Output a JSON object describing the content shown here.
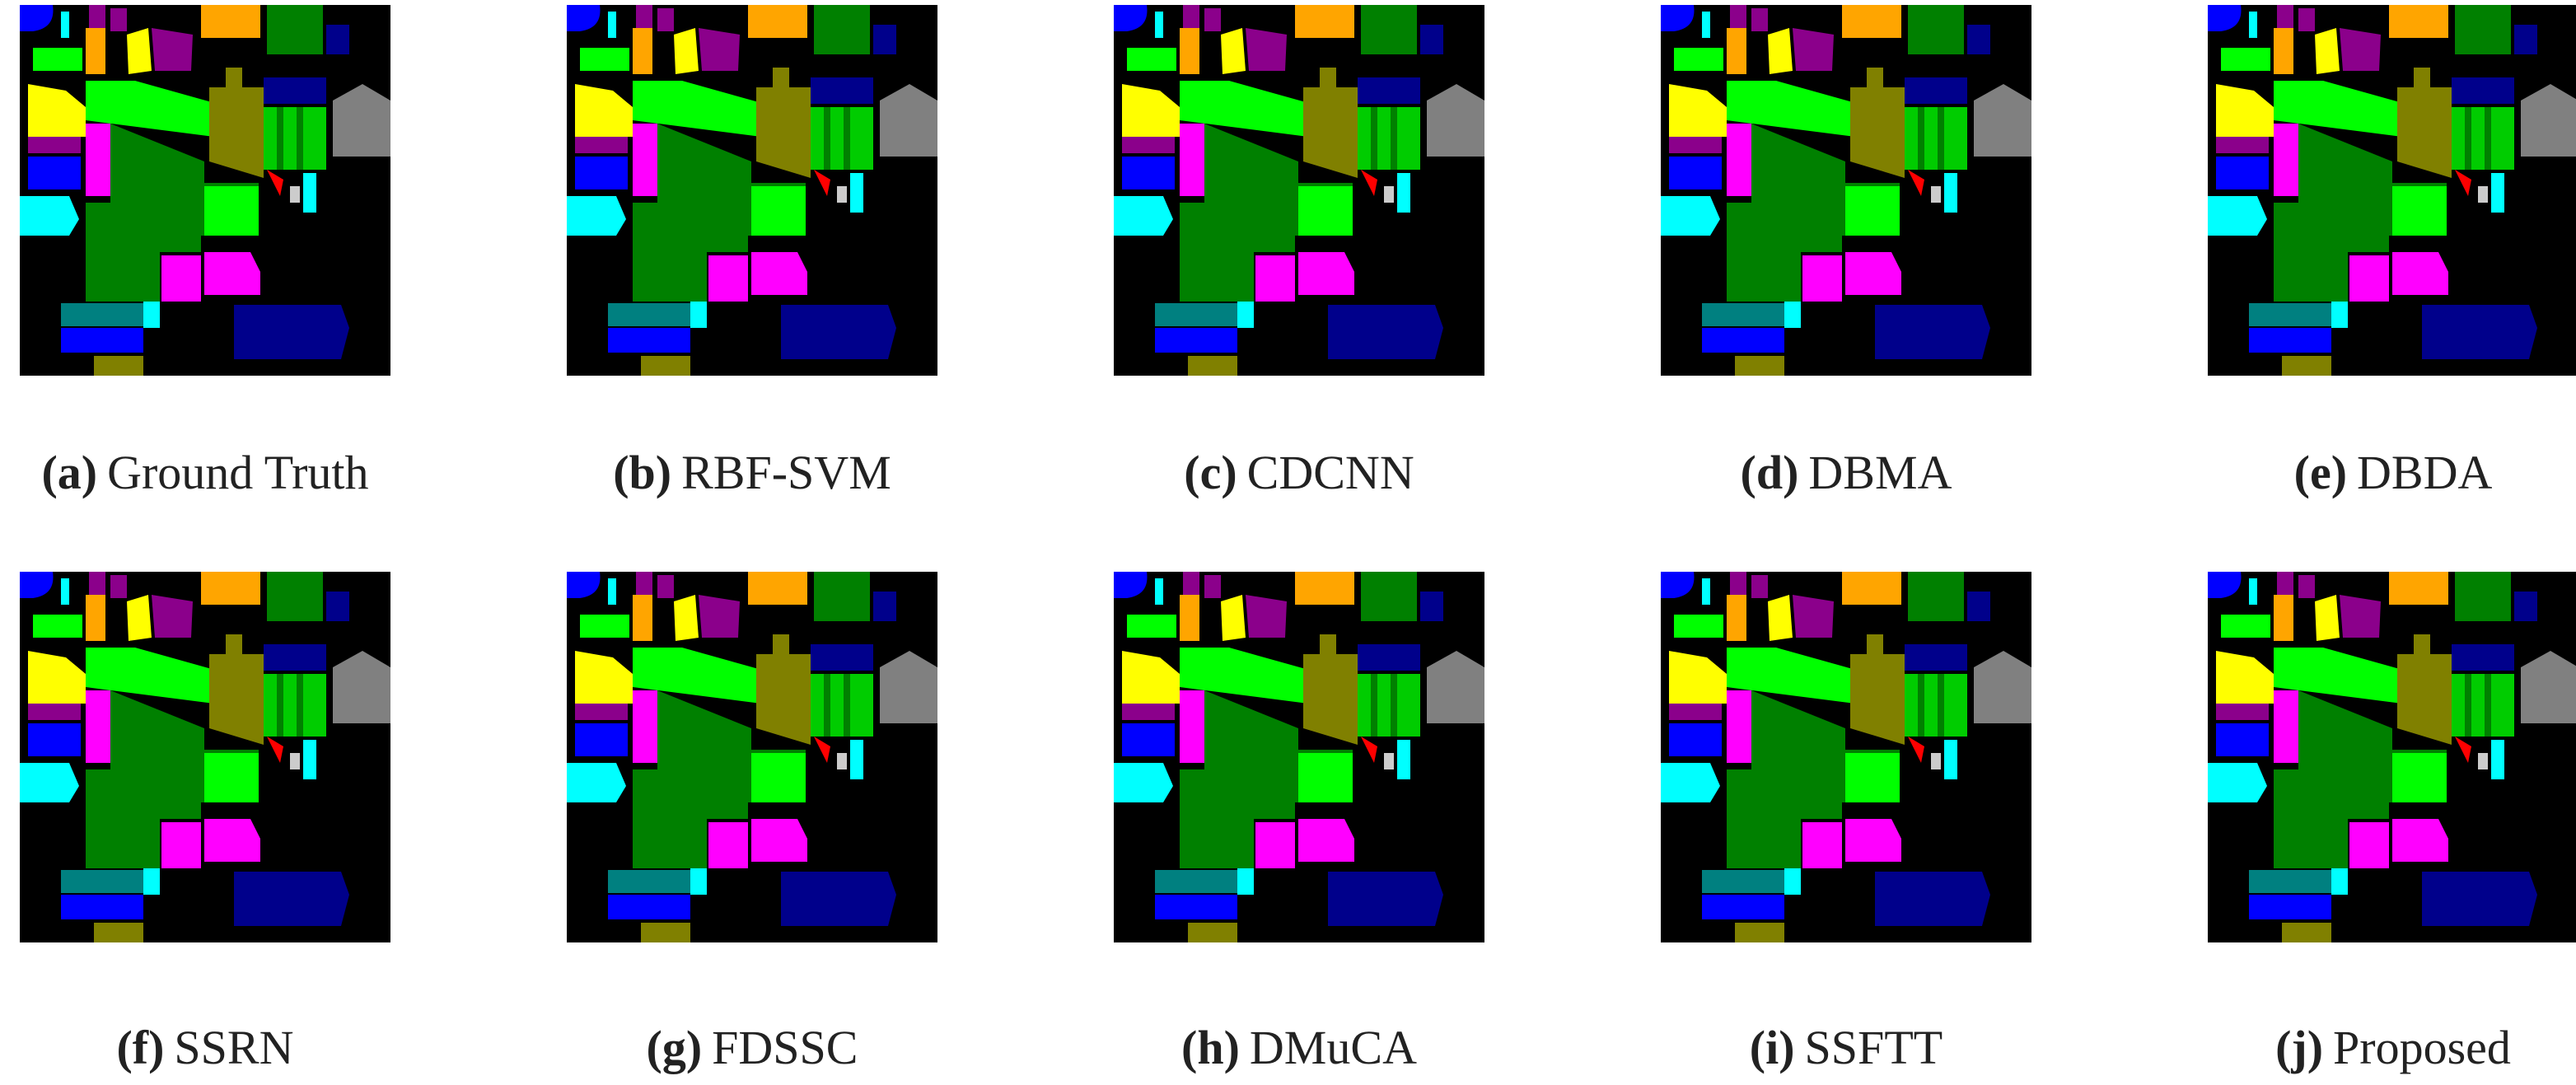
{
  "panels": [
    {
      "label": "(a)",
      "text": "Ground Truth"
    },
    {
      "label": "(b)",
      "text": "RBF-SVM"
    },
    {
      "label": "(c)",
      "text": "CDCNN"
    },
    {
      "label": "(d)",
      "text": "DBMA"
    },
    {
      "label": "(e)",
      "text": "DBDA"
    },
    {
      "label": "(f)",
      "text": "SSRN"
    },
    {
      "label": "(g)",
      "text": "FDSSC"
    },
    {
      "label": "(h)",
      "text": "DMuCA"
    },
    {
      "label": "(i)",
      "text": "SSFTT"
    },
    {
      "label": "(j)",
      "text": "Proposed"
    }
  ]
}
